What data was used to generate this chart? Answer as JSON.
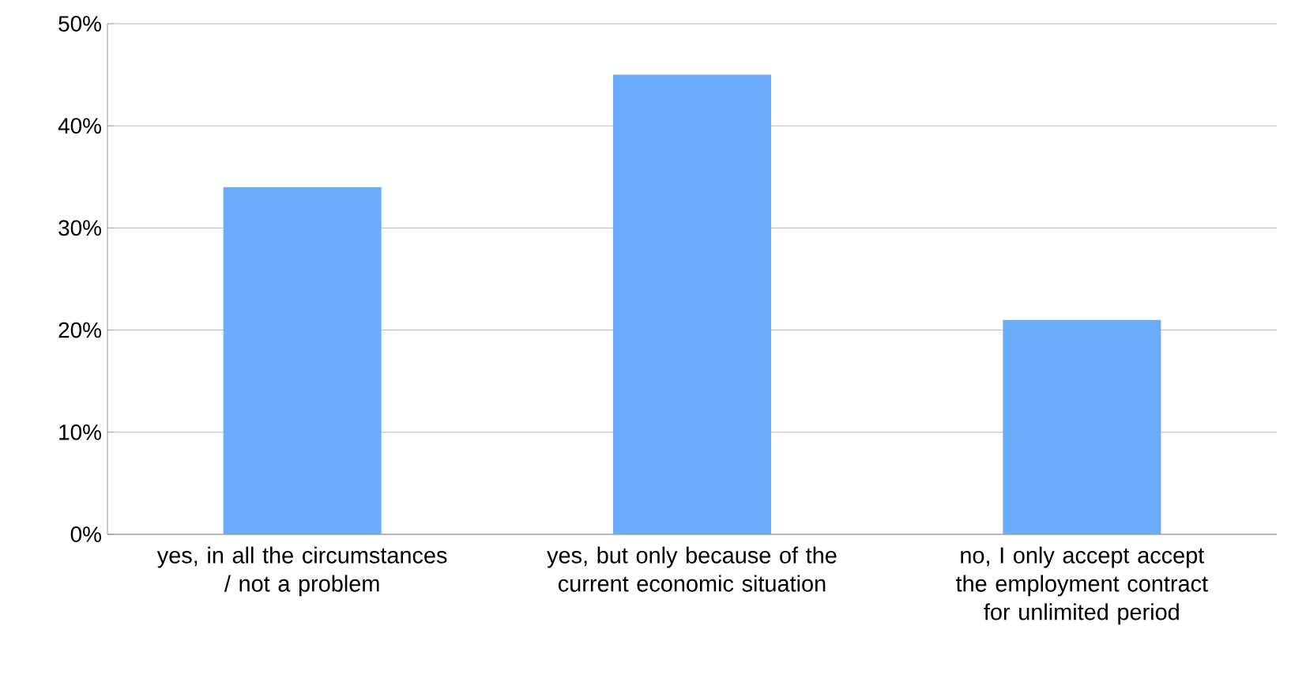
{
  "chart_data": {
    "type": "bar",
    "categories": [
      "yes, in all the circumstances / not a problem",
      "yes, but only because of the current economic situation",
      "no, I only accept accept the employment contract for unlimited period"
    ],
    "values": [
      34,
      45,
      21
    ],
    "color": "#6aabfb",
    "ylim": [
      0,
      50
    ],
    "yticks": [
      {
        "value": 0,
        "label": "0%"
      },
      {
        "value": 10,
        "label": "10%"
      },
      {
        "value": 20,
        "label": "20%"
      },
      {
        "value": 30,
        "label": "30%"
      },
      {
        "value": 40,
        "label": "40%"
      },
      {
        "value": 50,
        "label": "50%"
      }
    ],
    "grid": "y"
  }
}
